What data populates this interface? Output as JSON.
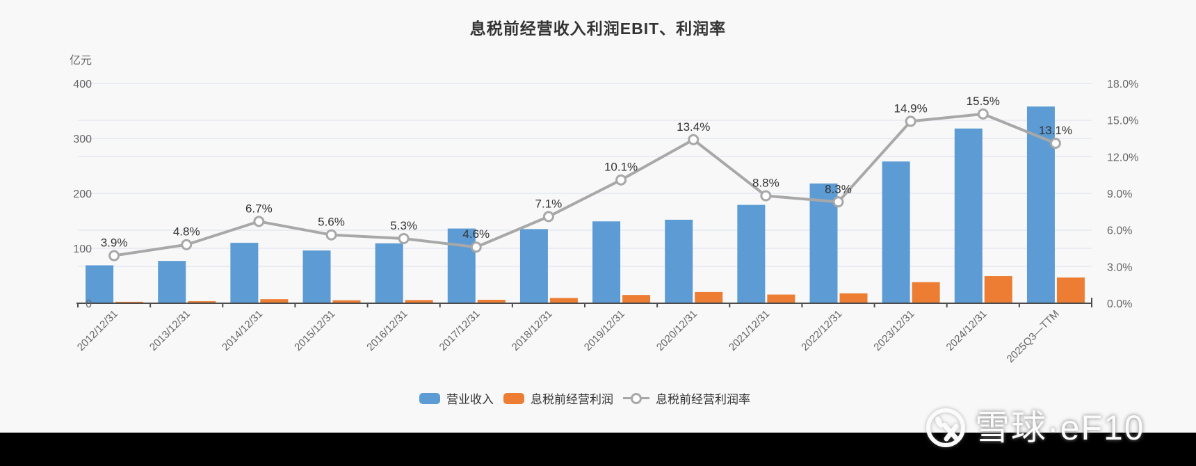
{
  "page": {
    "background_color": "#f8f8f9",
    "bottom_bar_color": "#000000"
  },
  "chart_data": {
    "type": "bar+line",
    "title": "息税前经营收入利润EBIT、利润率",
    "unit_label": "亿元",
    "legend_position": "bottom",
    "grid": true,
    "x_label_rotation": 45,
    "categories": [
      "2012/12/31",
      "2013/12/31",
      "2014/12/31",
      "2015/12/31",
      "2016/12/31",
      "2017/12/31",
      "2018/12/31",
      "2019/12/31",
      "2020/12/31",
      "2021/12/31",
      "2022/12/31",
      "2023/12/31",
      "2024/12/31",
      "2025Q3—TTM"
    ],
    "series": [
      {
        "name": "营业收入",
        "type": "bar",
        "axis": "left",
        "color": "#5c9bd3",
        "values": [
          69,
          77,
          110,
          96,
          109,
          136,
          135,
          149,
          152,
          179,
          218,
          258,
          318,
          358
        ]
      },
      {
        "name": "息税前经营利润",
        "type": "bar",
        "axis": "left",
        "color": "#ec7d33",
        "values": [
          2.7,
          3.7,
          7.4,
          5.4,
          5.8,
          6.3,
          9.6,
          15.0,
          20.4,
          15.8,
          18.1,
          38.4,
          49.3,
          46.9
        ]
      },
      {
        "name": "息税前经营利润率",
        "type": "line",
        "axis": "right",
        "color": "#a8a8a8",
        "marker": "hollow-circle",
        "values": [
          3.9,
          4.8,
          6.7,
          5.6,
          5.3,
          4.6,
          7.1,
          10.1,
          13.4,
          8.8,
          8.3,
          14.9,
          15.5,
          13.1
        ],
        "labels": [
          "3.9%",
          "4.8%",
          "6.7%",
          "5.6%",
          "5.3%",
          "4.6%",
          "7.1%",
          "10.1%",
          "13.4%",
          "8.8%",
          "8.3%",
          "14.9%",
          "15.5%",
          "13.1%"
        ]
      }
    ],
    "left_axis": {
      "min": 0,
      "max": 400,
      "tick_labels": [
        "0",
        "100",
        "200",
        "300",
        "400"
      ]
    },
    "right_axis": {
      "min": 0,
      "max": 18,
      "tick_labels": [
        "0.0%",
        "3.0%",
        "6.0%",
        "9.0%",
        "12.0%",
        "15.0%",
        "18.0%"
      ]
    },
    "colors": {
      "grid_line": "#e4e8f2",
      "axis_line": "#4c4c4c",
      "axis_text": "#666666",
      "data_label_text": "#333333",
      "line_marker_fill": "#ffffff"
    }
  },
  "legend": {
    "items": [
      {
        "label": "营业收入",
        "swatch": "blue-rounded-rect",
        "color": "#5c9bd3"
      },
      {
        "label": "息税前经营利润",
        "swatch": "orange-rounded-rect",
        "color": "#ec7d33"
      },
      {
        "label": "息税前经营利润率",
        "swatch": "line-with-hollow-circle",
        "color": "#a8a8a8"
      }
    ]
  },
  "watermark": {
    "logo": "xueqiu-snowball-icon",
    "text": "雪球·eF10"
  }
}
